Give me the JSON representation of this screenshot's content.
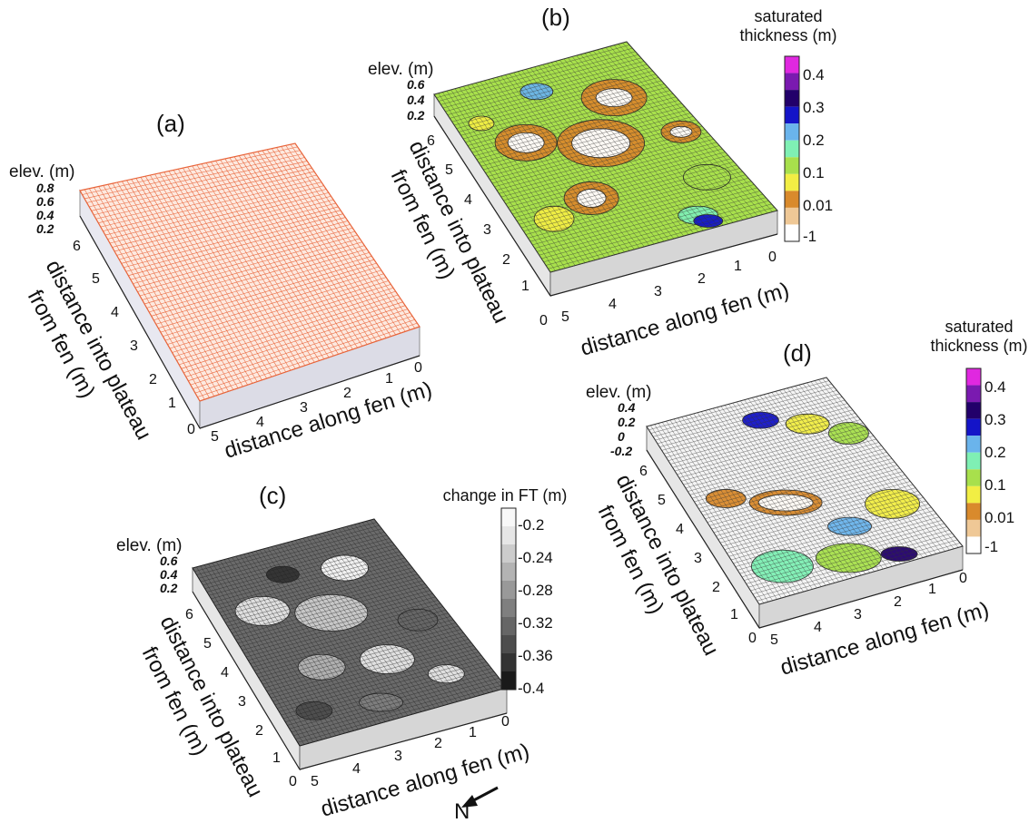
{
  "figure": {
    "panels": {
      "a": {
        "label": "(a)",
        "elev_label": "elev. (m)",
        "z_ticks": [
          "0.8",
          "0.6",
          "0.4",
          "0.2"
        ],
        "y_axis": [
          "distance into plateau",
          "from fen (m)"
        ],
        "y_ticks": [
          "6",
          "5",
          "4",
          "3",
          "2",
          "1",
          "0"
        ],
        "x_axis": "distance along fen (m)",
        "x_ticks": [
          "5",
          "4",
          "3",
          "2",
          "1",
          "0"
        ],
        "surface_color": "#e8643a"
      },
      "b": {
        "label": "(b)",
        "elev_label": "elev. (m)",
        "z_ticks": [
          "0.6",
          "0.4",
          "0.2"
        ],
        "y_axis": [
          "distance into plateau",
          "from fen (m)"
        ],
        "y_ticks": [
          "6",
          "5",
          "4",
          "3",
          "2",
          "1",
          "0"
        ],
        "x_axis": "distance along fen (m)",
        "x_ticks": [
          "5",
          "4",
          "3",
          "2",
          "1",
          "0"
        ],
        "colorbar_title": [
          "saturated",
          "thickness (m)"
        ],
        "colorbar_ticks": [
          "0.4",
          "0.3",
          "0.2",
          "0.1",
          "0.01",
          "-1"
        ]
      },
      "c": {
        "label": "(c)",
        "elev_label": "elev. (m)",
        "z_ticks": [
          "0.6",
          "0.4",
          "0.2"
        ],
        "y_axis": [
          "distance into plateau",
          "from fen (m)"
        ],
        "y_ticks": [
          "6",
          "5",
          "4",
          "3",
          "2",
          "1",
          "0"
        ],
        "x_axis": "distance along fen (m)",
        "x_ticks": [
          "5",
          "4",
          "3",
          "2",
          "1",
          "0"
        ],
        "colorbar_title": "change in FT (m)",
        "colorbar_ticks": [
          "-0.2",
          "-0.24",
          "-0.28",
          "-0.32",
          "-0.36",
          "-0.4"
        ]
      },
      "d": {
        "label": "(d)",
        "elev_label": "elev. (m)",
        "z_ticks": [
          "0.4",
          "0.2",
          "0",
          "-0.2"
        ],
        "y_axis": [
          "distance into plateau",
          "from fen (m)"
        ],
        "y_ticks": [
          "6",
          "5",
          "4",
          "3",
          "2",
          "1",
          "0"
        ],
        "x_axis": "distance along fen (m)",
        "x_ticks": [
          "5",
          "4",
          "3",
          "2",
          "1",
          "0"
        ],
        "colorbar_title": [
          "saturated",
          "thickness (m)"
        ],
        "colorbar_ticks": [
          "0.4",
          "0.3",
          "0.2",
          "0.1",
          "0.01",
          "-1"
        ]
      }
    },
    "north_label": "N",
    "saturated_palette": [
      "#ffffff",
      "#efc896",
      "#d98a2c",
      "#f2ee44",
      "#a8e04c",
      "#7ff0b4",
      "#6ab4ec",
      "#1414c8",
      "#22006a",
      "#7a1ab0",
      "#e028e0"
    ],
    "gray_palette": [
      "#1a1a1a",
      "#333333",
      "#4d4d4d",
      "#666666",
      "#7f7f7f",
      "#999999",
      "#b3b3b3",
      "#cccccc",
      "#e6e6e6",
      "#f8f8f8"
    ]
  }
}
